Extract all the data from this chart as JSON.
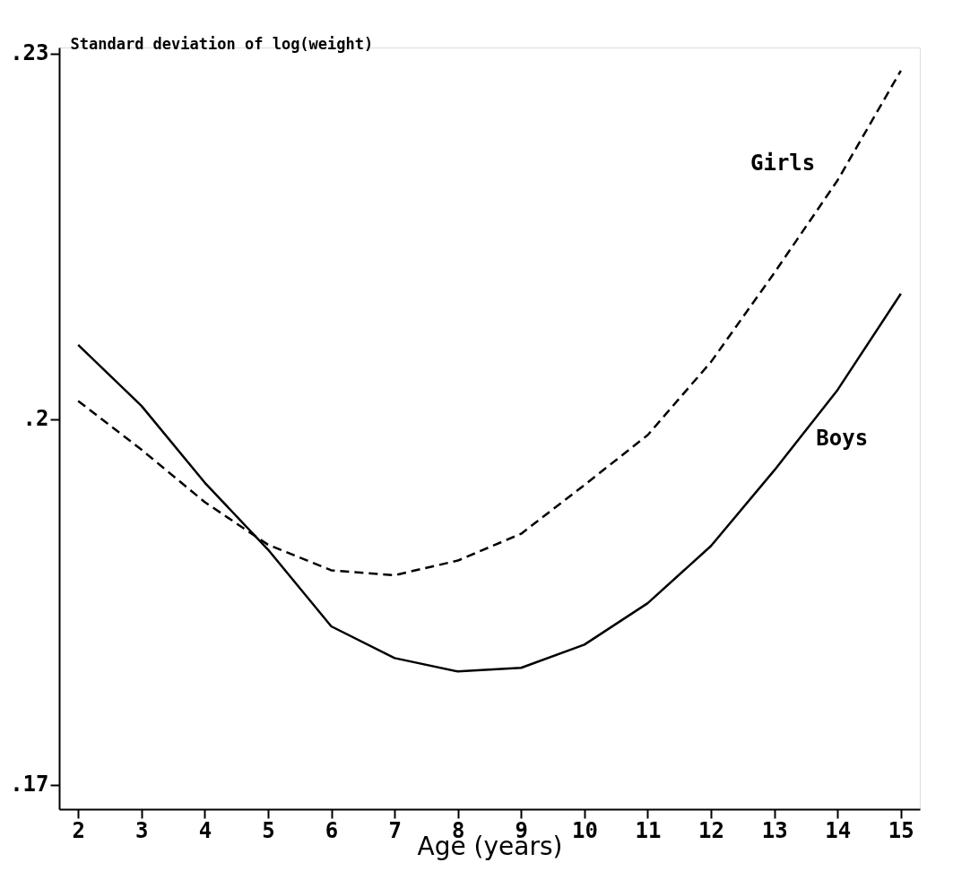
{
  "chart_data": {
    "type": "line",
    "ylabel": "Standard deviation of log(weight)",
    "xlabel": "Age (years)",
    "x": [
      2,
      3,
      4,
      5,
      6,
      7,
      8,
      9,
      10,
      11,
      12,
      13,
      14,
      15
    ],
    "series": [
      {
        "name": "Boys",
        "color": "#000000",
        "line_style": "solid",
        "values": [
          0.2061,
          0.2011,
          0.1948,
          0.1893,
          0.183,
          0.1804,
          0.1793,
          0.1796,
          0.1815,
          0.1849,
          0.1896,
          0.1958,
          0.2024,
          0.2103
        ]
      },
      {
        "name": "Girls",
        "color": "#000000",
        "line_style": "dashed",
        "values": [
          0.2015,
          0.1975,
          0.1932,
          0.1897,
          0.1876,
          0.1872,
          0.1884,
          0.1906,
          0.1946,
          0.1987,
          0.2047,
          0.212,
          0.2196,
          0.2286
        ]
      }
    ],
    "xlim": [
      1.7,
      15.3
    ],
    "ylim": [
      0.168,
      0.2305
    ],
    "xticks": [
      2,
      3,
      4,
      5,
      6,
      7,
      8,
      9,
      10,
      11,
      12,
      13,
      14,
      15
    ],
    "yticks": [
      {
        "value": 0.17,
        "label": ".17"
      },
      {
        "value": 0.2,
        "label": ".2"
      },
      {
        "value": 0.23,
        "label": ".23"
      }
    ],
    "grid": false,
    "marker": "none"
  }
}
